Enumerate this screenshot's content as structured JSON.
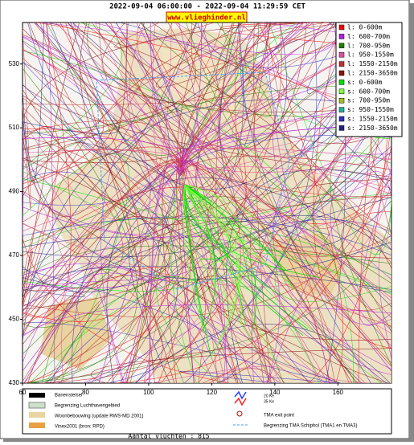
{
  "header": {
    "title": "2022-09-04 06:00:00 - 2022-09-04 11:29:59 CET",
    "logo": "www.vlieghinder.nl"
  },
  "axes": {
    "xlim": [
      60,
      177
    ],
    "ylim": [
      430,
      543
    ],
    "xticks": [
      60,
      80,
      100,
      120,
      140,
      160
    ],
    "yticks": [
      430,
      450,
      470,
      490,
      510,
      530
    ]
  },
  "legend": [
    {
      "label": "l: 0-600m",
      "color": "#ff0000"
    },
    {
      "label": "l: 600-700m",
      "color": "#b020e0"
    },
    {
      "label": "l: 700-950m",
      "color": "#208000"
    },
    {
      "label": "l: 950-1550m",
      "color": "#e050a0"
    },
    {
      "label": "l: 1550-2150m",
      "color": "#c03030"
    },
    {
      "label": "l: 2150-3650m",
      "color": "#901010"
    },
    {
      "label": "s: 0-600m",
      "color": "#00e000"
    },
    {
      "label": "s: 600-700m",
      "color": "#80ff40"
    },
    {
      "label": "s: 700-950m",
      "color": "#a0c020"
    },
    {
      "label": "s: 950-1550m",
      "color": "#20b0a0"
    },
    {
      "label": "s: 1550-2150m",
      "color": "#3030c0"
    },
    {
      "label": "s: 2150-3650m",
      "color": "#202080"
    }
  ],
  "map_legend": {
    "runways": "Banenstelsel",
    "airport_boundary": "Begrenzing Luchthavengebied",
    "housing": "Woonbebouwing (update RWS-MD 2001)",
    "vinex": "Vinex2001 (bron: RPD)",
    "ke20": "20 Ke",
    "ke35": "35 Ke",
    "tma_exit": "TMA exit point",
    "tma_boundary": "Begrenzing TMA Schiphol  (TMA1 en TMA3)"
  },
  "footer": {
    "flights": "Aantal vluchten : 815"
  }
}
